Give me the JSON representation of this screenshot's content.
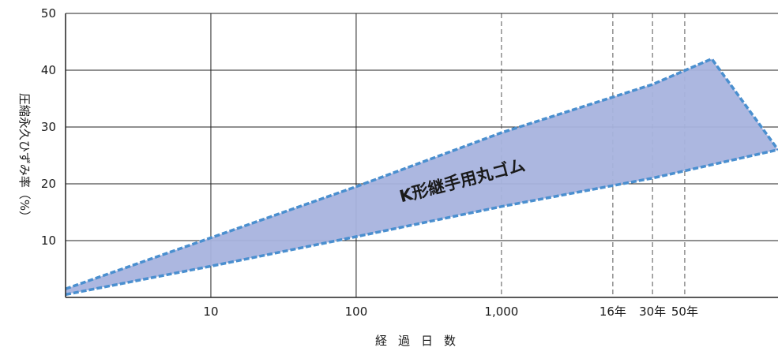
{
  "chart_data": {
    "type": "area",
    "xlabel": "経過日数",
    "ylabel": "圧縮永久ひずみ率（%）",
    "x_scale": "log",
    "ylim": [
      0,
      50
    ],
    "grid": true,
    "y_ticks": [
      "10",
      "20",
      "30",
      "40",
      "50"
    ],
    "x_ticks": [
      {
        "label": "10",
        "days": 10,
        "style": "solid"
      },
      {
        "label": "100",
        "days": 100,
        "style": "solid"
      },
      {
        "label": "1,000",
        "days": 1000,
        "style": "dashed"
      },
      {
        "label": "16年",
        "days": 5840,
        "style": "dashed"
      },
      {
        "label": "30年",
        "days": 10950,
        "style": "dashed"
      },
      {
        "label": "50年",
        "days": 18250,
        "style": "dashed"
      }
    ],
    "series": [
      {
        "name": "K形継手用丸ゴム",
        "upper": [
          {
            "x": 1,
            "y": 1.5
          },
          {
            "x": 10,
            "y": 10.5
          },
          {
            "x": 100,
            "y": 19.5
          },
          {
            "x": 1000,
            "y": 29
          },
          {
            "x": 10950,
            "y": 37.5
          },
          {
            "x": 28000,
            "y": 42
          },
          {
            "x": 80000,
            "y": 26
          }
        ],
        "lower": [
          {
            "x": 1,
            "y": 0.5
          },
          {
            "x": 10,
            "y": 5.5
          },
          {
            "x": 100,
            "y": 10.7
          },
          {
            "x": 1000,
            "y": 16
          },
          {
            "x": 10950,
            "y": 21
          },
          {
            "x": 80000,
            "y": 26
          }
        ],
        "fill_color": "#a8b3de",
        "edge_color": "#4a8fcf"
      }
    ]
  }
}
